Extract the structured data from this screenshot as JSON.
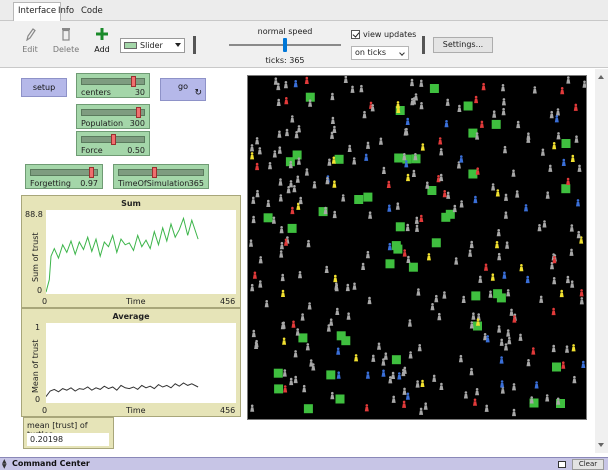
{
  "tabs": [
    {
      "label": "Interface",
      "active": true
    },
    {
      "label": "Info",
      "active": false
    },
    {
      "label": "Code",
      "active": false
    }
  ],
  "toolbar": {
    "edit_label": "Edit",
    "delete_label": "Delete",
    "add_label": "Add",
    "widget_type": "Slider",
    "speed_label": "normal speed",
    "speed_fraction": 0.5,
    "ticks_text": "ticks: 365",
    "view_updates_label": "view updates",
    "view_updates_checked": true,
    "update_mode": "on ticks",
    "settings_label": "Settings..."
  },
  "buttons": {
    "setup": "setup",
    "go": "go"
  },
  "sliders": [
    {
      "name": "centers",
      "value": "30",
      "fraction": 0.85
    },
    {
      "name": "Population",
      "value": "300",
      "fraction": 0.93
    },
    {
      "name": "Force",
      "value": "0.50",
      "fraction": 0.5
    },
    {
      "name": "Forgetting",
      "value": "0.97",
      "fraction": 0.93
    },
    {
      "name": "TimeOfSimulation",
      "value": "365",
      "fraction": 0.42
    }
  ],
  "plots": [
    {
      "title": "Sum",
      "ylabel": "Sum of trust",
      "xlabel": "Time",
      "ymin": "0",
      "ymax": "88.8",
      "xmin": "0",
      "xmax": "456",
      "color": "#3cb54a"
    },
    {
      "title": "Average",
      "ylabel": "Mean of trust",
      "xlabel": "Time",
      "ymin": "0",
      "ymax": "1",
      "xmin": "0",
      "xmax": "456",
      "color": "#333333"
    }
  ],
  "chart_data": [
    {
      "type": "line",
      "title": "Sum",
      "xlabel": "Time",
      "ylabel": "Sum of trust",
      "xlim": [
        0,
        456
      ],
      "ylim": [
        0,
        88.8
      ],
      "x": [
        0,
        8,
        12,
        20,
        30,
        40,
        50,
        60,
        70,
        80,
        90,
        100,
        110,
        120,
        130,
        140,
        150,
        160,
        170,
        180,
        190,
        200,
        210,
        220,
        230,
        240,
        250,
        260,
        270,
        280,
        290,
        300,
        310,
        320,
        330,
        340,
        350,
        365
      ],
      "y": [
        2,
        15,
        40,
        48,
        38,
        52,
        44,
        56,
        42,
        55,
        47,
        60,
        45,
        58,
        40,
        55,
        50,
        62,
        44,
        58,
        52,
        54,
        46,
        62,
        50,
        57,
        48,
        66,
        52,
        70,
        56,
        74,
        60,
        68,
        80,
        62,
        78,
        58
      ]
    },
    {
      "type": "line",
      "title": "Average",
      "xlabel": "Time",
      "ylabel": "Mean of trust",
      "xlim": [
        0,
        456
      ],
      "ylim": [
        0,
        1
      ],
      "x": [
        0,
        10,
        20,
        30,
        40,
        50,
        60,
        70,
        80,
        90,
        100,
        110,
        120,
        130,
        140,
        150,
        160,
        170,
        180,
        190,
        200,
        210,
        220,
        230,
        240,
        250,
        260,
        270,
        280,
        290,
        300,
        310,
        320,
        330,
        340,
        350,
        365
      ],
      "y": [
        0.08,
        0.15,
        0.17,
        0.14,
        0.18,
        0.16,
        0.19,
        0.15,
        0.18,
        0.17,
        0.2,
        0.16,
        0.19,
        0.17,
        0.21,
        0.18,
        0.2,
        0.16,
        0.22,
        0.19,
        0.18,
        0.2,
        0.17,
        0.22,
        0.19,
        0.21,
        0.18,
        0.23,
        0.2,
        0.22,
        0.19,
        0.24,
        0.21,
        0.25,
        0.22,
        0.24,
        0.2
      ]
    }
  ],
  "monitor": {
    "label": "mean [trust] of turtles",
    "value": "0.20198"
  },
  "command_center": {
    "label": "Command Center",
    "clear_label": "Clear"
  }
}
